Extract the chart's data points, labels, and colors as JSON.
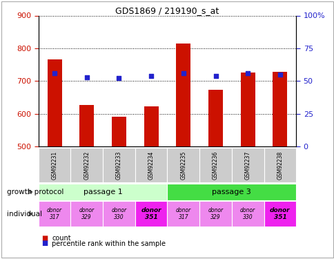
{
  "title": "GDS1869 / 219190_s_at",
  "samples": [
    "GSM92231",
    "GSM92232",
    "GSM92233",
    "GSM92234",
    "GSM92235",
    "GSM92236",
    "GSM92237",
    "GSM92238"
  ],
  "counts": [
    765,
    627,
    590,
    622,
    815,
    672,
    725,
    728
  ],
  "percentile_ranks": [
    56,
    53,
    52,
    54,
    56,
    54,
    56,
    55
  ],
  "ylim_left": [
    500,
    900
  ],
  "ylim_right": [
    0,
    100
  ],
  "yticks_left": [
    500,
    600,
    700,
    800,
    900
  ],
  "yticks_right": [
    0,
    25,
    50,
    75,
    100
  ],
  "bar_color": "#cc1100",
  "dot_color": "#2222cc",
  "passage_1_color": "#ccffcc",
  "passage_3_color": "#44dd44",
  "donor_color_normal": "#ee88ee",
  "donor_color_351": "#ee22ee",
  "passage_1_label": "passage 1",
  "passage_3_label": "passage 3",
  "donor_labels": [
    "donor\n317",
    "donor\n329",
    "donor\n330",
    "donor\n351",
    "donor\n317",
    "donor\n329",
    "donor\n330",
    "donor\n351"
  ],
  "donor_351_indices": [
    3,
    7
  ],
  "sample_box_color": "#cccccc",
  "grid_color": "#000000",
  "left_label_growth": "growth protocol",
  "left_label_individual": "individual",
  "legend_count": "count",
  "legend_pct": "percentile rank within the sample"
}
